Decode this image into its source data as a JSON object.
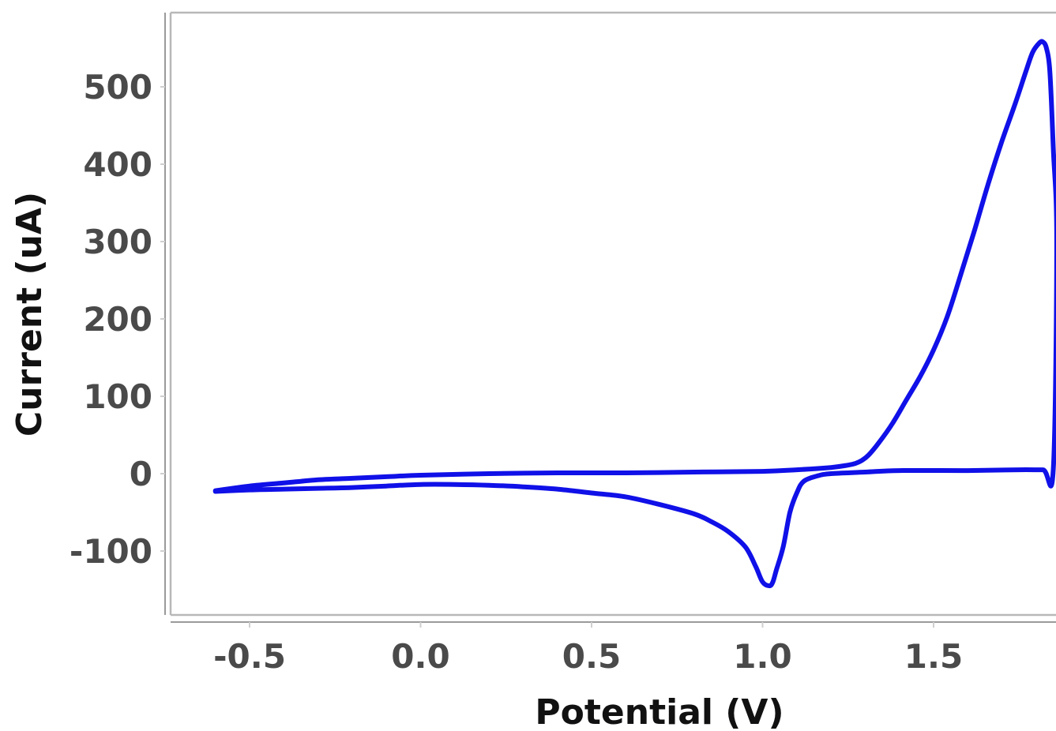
{
  "chart_data": {
    "type": "line",
    "title": "",
    "xlabel": "Potential (V)",
    "ylabel": "Current (uA)",
    "xlim": [
      -0.62,
      1.86
    ],
    "ylim": [
      -178,
      590
    ],
    "x_ticks": [
      -0.5,
      0.0,
      0.5,
      1.0,
      1.5
    ],
    "x_tick_labels": [
      "-0.5",
      "0.0",
      "0.5",
      "1.0",
      "1.5"
    ],
    "y_ticks": [
      -100,
      0,
      100,
      200,
      300,
      400,
      500
    ],
    "y_tick_labels": [
      "-100",
      "0",
      "100",
      "200",
      "300",
      "400",
      "500"
    ],
    "grid": false,
    "legend": "none",
    "series": [
      {
        "color": "#1010e8",
        "x": [
          -0.6,
          -0.5,
          -0.4,
          -0.3,
          -0.2,
          -0.1,
          0.0,
          0.2,
          0.4,
          0.6,
          0.8,
          1.0,
          1.1,
          1.2,
          1.25,
          1.27,
          1.29,
          1.31,
          1.34,
          1.38,
          1.42,
          1.46,
          1.5,
          1.54,
          1.58,
          1.62,
          1.66,
          1.7,
          1.74,
          1.77,
          1.79,
          1.81,
          1.82,
          1.83,
          1.84,
          1.85,
          1.86,
          1.85,
          1.82,
          1.75,
          1.6,
          1.4,
          1.3,
          1.2,
          1.16,
          1.12,
          1.1,
          1.08,
          1.06,
          1.04,
          1.03,
          1.02,
          1.0,
          0.98,
          0.95,
          0.9,
          0.85,
          0.8,
          0.7,
          0.6,
          0.5,
          0.4,
          0.3,
          0.2,
          0.1,
          0.0,
          -0.1,
          -0.2,
          -0.3,
          -0.4,
          -0.5,
          -0.6
        ],
        "y": [
          -22,
          -16,
          -12,
          -8,
          -6,
          -4,
          -2,
          0,
          1,
          1,
          2,
          3,
          5,
          8,
          11,
          13,
          17,
          24,
          40,
          65,
          95,
          125,
          160,
          203,
          258,
          315,
          375,
          430,
          480,
          520,
          545,
          557,
          558,
          550,
          520,
          420,
          300,
          6,
          5,
          5,
          4,
          4,
          2,
          0,
          -3,
          -10,
          -25,
          -50,
          -95,
          -125,
          -140,
          -145,
          -140,
          -120,
          -95,
          -75,
          -62,
          -52,
          -40,
          -30,
          -25,
          -20,
          -17,
          -15,
          -14,
          -14,
          -16,
          -18,
          -19,
          -20,
          -21,
          -23
        ]
      }
    ]
  }
}
